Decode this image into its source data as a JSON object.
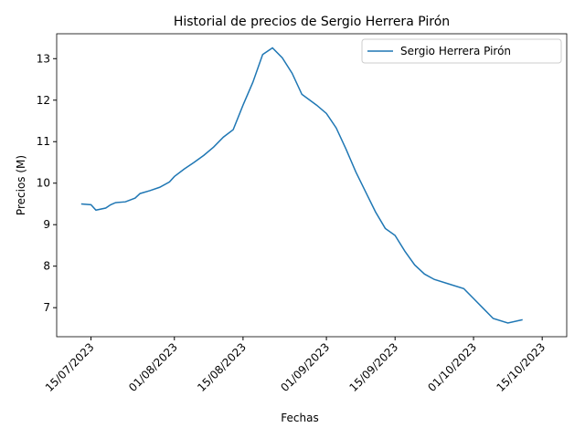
{
  "chart_data": {
    "type": "line",
    "title": "Historial de precios de Sergio Herrera Pirón",
    "x_label": "Fechas",
    "y_label": "Precios (M)",
    "x": [
      "2023-07-13",
      "2023-07-15",
      "2023-07-16",
      "2023-07-18",
      "2023-07-19",
      "2023-07-20",
      "2023-07-22",
      "2023-07-24",
      "2023-07-25",
      "2023-07-27",
      "2023-07-29",
      "2023-07-31",
      "2023-08-01",
      "2023-08-03",
      "2023-08-05",
      "2023-08-07",
      "2023-08-09",
      "2023-08-11",
      "2023-08-13",
      "2023-08-15",
      "2023-08-17",
      "2023-08-19",
      "2023-08-21",
      "2023-08-23",
      "2023-08-25",
      "2023-08-27",
      "2023-08-30",
      "2023-09-01",
      "2023-09-03",
      "2023-09-05",
      "2023-09-07",
      "2023-09-09",
      "2023-09-11",
      "2023-09-13",
      "2023-09-15",
      "2023-09-17",
      "2023-09-19",
      "2023-09-21",
      "2023-09-23",
      "2023-09-26",
      "2023-09-29",
      "2023-10-01",
      "2023-10-03",
      "2023-10-05",
      "2023-10-08",
      "2023-10-11"
    ],
    "series": [
      {
        "name": "Sergio Herrera Pirón",
        "color": "#1f77b4",
        "values": [
          9.5,
          9.48,
          9.35,
          9.4,
          9.48,
          9.53,
          9.55,
          9.64,
          9.75,
          9.82,
          9.9,
          10.03,
          10.16,
          10.34,
          10.5,
          10.67,
          10.87,
          11.11,
          11.29,
          11.88,
          12.43,
          13.1,
          13.26,
          13.02,
          12.65,
          12.14,
          11.88,
          11.68,
          11.33,
          10.82,
          10.27,
          9.79,
          9.31,
          8.91,
          8.74,
          8.36,
          8.03,
          7.81,
          7.68,
          7.57,
          7.46,
          7.22,
          6.98,
          6.74,
          6.63,
          6.71
        ]
      }
    ],
    "xlim": [
      "2023-07-08",
      "2023-10-20"
    ],
    "xticks": [
      {
        "value": "2023-07-15",
        "label": "15/07/2023"
      },
      {
        "value": "2023-08-01",
        "label": "01/08/2023"
      },
      {
        "value": "2023-08-15",
        "label": "15/08/2023"
      },
      {
        "value": "2023-09-01",
        "label": "01/09/2023"
      },
      {
        "value": "2023-09-15",
        "label": "15/09/2023"
      },
      {
        "value": "2023-10-01",
        "label": "01/10/2023"
      },
      {
        "value": "2023-10-15",
        "label": "15/10/2023"
      }
    ],
    "ylim": [
      6.3,
      13.6
    ],
    "yticks": [
      7,
      8,
      9,
      10,
      11,
      12,
      13
    ],
    "legend": "upper right",
    "grid": false
  }
}
